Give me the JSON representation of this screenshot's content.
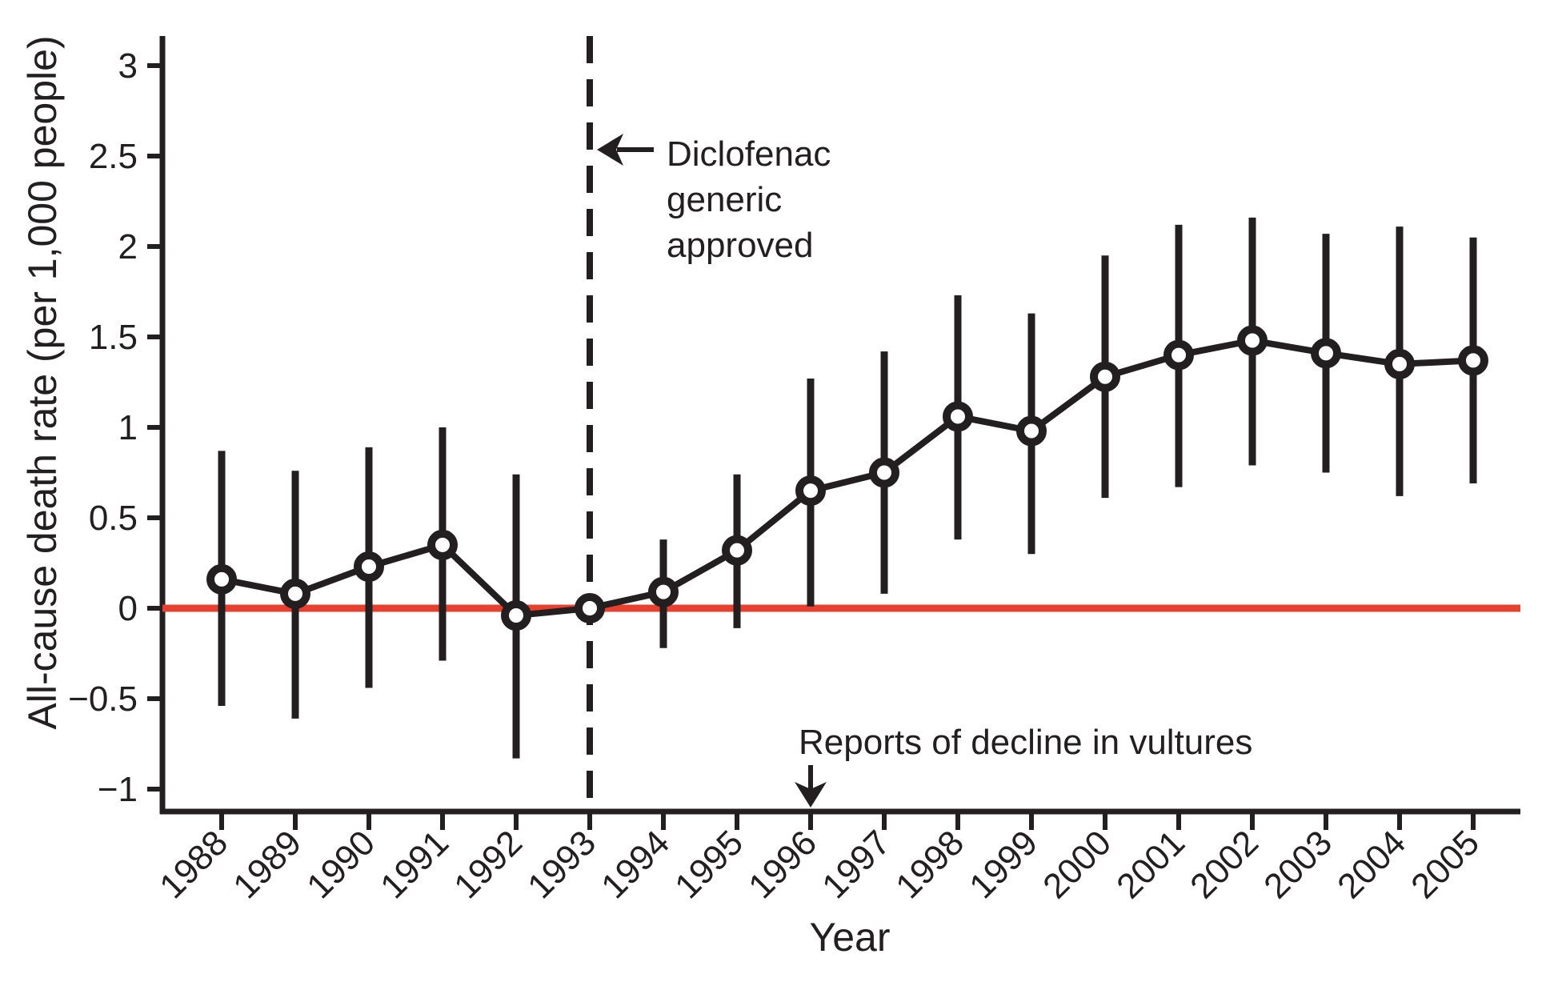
{
  "figure": {
    "background": "#ffffff",
    "ink_color": "#231f20",
    "zero_line_color": "#e8402f"
  },
  "chart_data": {
    "type": "line",
    "title": "",
    "xlabel": "Year",
    "ylabel": "All-cause death rate (per 1,000 people)",
    "x": [
      1988,
      1989,
      1990,
      1991,
      1992,
      1993,
      1994,
      1995,
      1996,
      1997,
      1998,
      1999,
      2000,
      2001,
      2002,
      2003,
      2004,
      2005
    ],
    "series": [
      {
        "name": "All-cause death rate estimate",
        "values": [
          0.16,
          0.08,
          0.23,
          0.35,
          -0.04,
          0.0,
          0.09,
          0.32,
          0.65,
          0.75,
          1.06,
          0.98,
          1.28,
          1.4,
          1.48,
          1.41,
          1.35,
          1.37
        ]
      }
    ],
    "error_bars": {
      "lower": [
        -0.54,
        -0.61,
        -0.44,
        -0.29,
        -0.83,
        null,
        -0.22,
        -0.11,
        0.01,
        0.08,
        0.38,
        0.3,
        0.61,
        0.67,
        0.79,
        0.75,
        0.62,
        0.69
      ],
      "upper": [
        0.87,
        0.76,
        0.89,
        1.0,
        0.74,
        null,
        0.38,
        0.74,
        1.27,
        1.42,
        1.73,
        1.63,
        1.95,
        2.12,
        2.16,
        2.07,
        2.11,
        2.05
      ]
    },
    "ylim": [
      -1.25,
      3.15
    ],
    "yticks": [
      3,
      2.5,
      2,
      1.5,
      1,
      0.5,
      0,
      -0.5,
      -1
    ],
    "ytick_labels": [
      "3",
      "2.5",
      "2",
      "1.5",
      "1",
      "0.5",
      "0",
      "−0.5",
      "−1"
    ],
    "grid": false,
    "legend": "none",
    "marker": "open-circle",
    "reference_line": {
      "y": 0
    },
    "vline": {
      "x": 1993,
      "style": "dashed"
    },
    "annotations": [
      {
        "id": "diclofenac",
        "text": [
          "Diclofenac",
          "generic",
          "approved"
        ],
        "arrow": "left",
        "points_to_x": 1993,
        "arrow_y": 2.54
      },
      {
        "id": "vulture-decline",
        "text": [
          "Reports of decline in vultures"
        ],
        "arrow": "down",
        "points_to_x": 1996,
        "text_y": -0.8
      }
    ]
  }
}
